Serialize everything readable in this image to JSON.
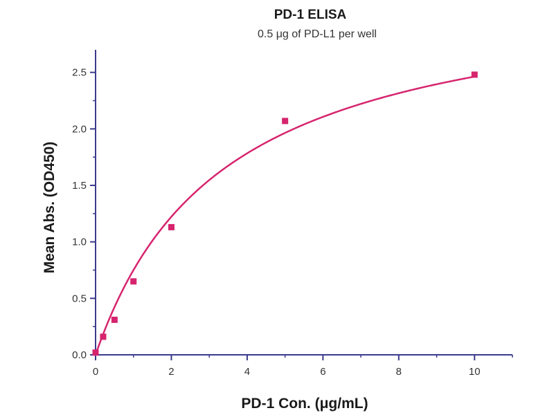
{
  "chart_data": {
    "type": "scatter",
    "title": "PD-1 ELISA",
    "subtitle": "0.5 μg of PD-L1 per well",
    "xlabel": "PD-1 Con. (μg/mL)",
    "ylabel": "Mean Abs. (OD450)",
    "xlim": [
      0,
      11
    ],
    "ylim": [
      0,
      2.7
    ],
    "x_ticks": [
      0,
      2,
      4,
      6,
      8,
      10
    ],
    "x_tick_labels": [
      "0",
      "2",
      "4",
      "6",
      "8",
      "10"
    ],
    "y_ticks": [
      0,
      0.5,
      1.0,
      1.5,
      2.0,
      2.5
    ],
    "y_tick_labels": [
      "0.0",
      "0.5",
      "1.0",
      "1.5",
      "2.0",
      "2.5"
    ],
    "grid": false,
    "legend": "none",
    "series": [
      {
        "points": [
          {
            "x": 0,
            "y": 0.02
          },
          {
            "x": 0.2,
            "y": 0.16
          },
          {
            "x": 0.5,
            "y": 0.31
          },
          {
            "x": 1,
            "y": 0.65
          },
          {
            "x": 2,
            "y": 1.13
          },
          {
            "x": 5,
            "y": 2.07
          },
          {
            "x": 10,
            "y": 2.48
          }
        ],
        "fit": {
          "model": "one-site saturation",
          "bmax": 3.3,
          "kd": 3.4
        },
        "color": "#d6246e"
      }
    ],
    "axis_color": "#3a3a8c"
  }
}
